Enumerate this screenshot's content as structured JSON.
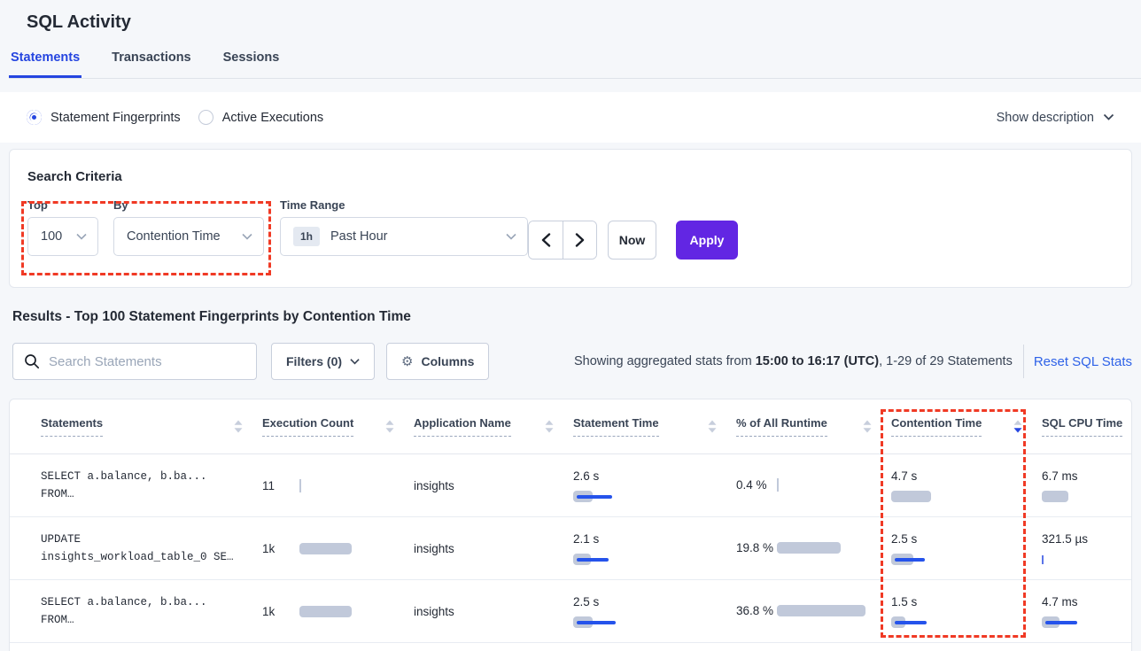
{
  "page": {
    "title": "SQL Activity"
  },
  "tabs": [
    {
      "label": "Statements",
      "active": true
    },
    {
      "label": "Transactions",
      "active": false
    },
    {
      "label": "Sessions",
      "active": false
    }
  ],
  "view_toggle": {
    "options": [
      {
        "label": "Statement Fingerprints",
        "selected": true
      },
      {
        "label": "Active Executions",
        "selected": false
      }
    ],
    "show_description": "Show description"
  },
  "search_criteria": {
    "title": "Search Criteria",
    "top": {
      "label": "Top",
      "value": "100"
    },
    "by": {
      "label": "By",
      "value": "Contention Time"
    },
    "time_range": {
      "label": "Time Range",
      "badge": "1h",
      "value": "Past Hour"
    },
    "now_label": "Now",
    "apply_label": "Apply"
  },
  "results": {
    "heading": "Results - Top 100 Statement Fingerprints by Contention Time",
    "search_placeholder": "Search Statements",
    "filters_label": "Filters (0)",
    "columns_label": "Columns",
    "stats_prefix": "Showing aggregated stats from ",
    "stats_range": "15:00 to 16:17 (UTC)",
    "stats_suffix": ", 1-29 of 29 Statements",
    "reset_label": "Reset SQL Stats"
  },
  "table": {
    "headers": [
      {
        "key": "statements",
        "label": "Statements",
        "sort": null
      },
      {
        "key": "execution-count",
        "label": "Execution Count",
        "sort": null
      },
      {
        "key": "application-name",
        "label": "Application Name",
        "sort": null
      },
      {
        "key": "statement-time",
        "label": "Statement Time",
        "sort": null
      },
      {
        "key": "runtime-pct",
        "label": "% of All Runtime",
        "sort": null
      },
      {
        "key": "contention-time",
        "label": "Contention Time",
        "sort": "desc"
      },
      {
        "key": "sql-cpu-time",
        "label": "SQL CPU Time",
        "sort": null
      }
    ],
    "rows": [
      {
        "statement": [
          "SELECT a.balance, b.ba...",
          "FROM…"
        ],
        "execution_count": "11",
        "execution_bar": {
          "tick": true
        },
        "application": "insights",
        "statement_time": "2.6 s",
        "statement_time_bar": {
          "gray": 22,
          "blue": 40
        },
        "runtime_pct": "0.4 %",
        "runtime_bar": {
          "tick": true
        },
        "contention_time": "4.7 s",
        "contention_bar": {
          "gray": 45,
          "blue": 0
        },
        "sql_cpu_time": "6.7 ms",
        "sql_cpu_bar": {
          "gray": 30,
          "blue": 0
        }
      },
      {
        "statement": [
          "UPDATE",
          "insights_workload_table_0 SE…"
        ],
        "execution_count": "1k",
        "execution_bar": {
          "gray": 59
        },
        "application": "insights",
        "statement_time": "2.1 s",
        "statement_time_bar": {
          "gray": 20,
          "blue": 36
        },
        "runtime_pct": "19.8 %",
        "runtime_bar": {
          "gray": 72
        },
        "contention_time": "2.5 s",
        "contention_bar": {
          "gray": 25,
          "blue": 34
        },
        "sql_cpu_time": "321.5 µs",
        "sql_cpu_bar": {
          "tick": true,
          "blue_tick": true
        }
      },
      {
        "statement": [
          "SELECT a.balance, b.ba...",
          "FROM…"
        ],
        "execution_count": "1k",
        "execution_bar": {
          "gray": 59
        },
        "application": "insights",
        "statement_time": "2.5 s",
        "statement_time_bar": {
          "gray": 22,
          "blue": 44
        },
        "runtime_pct": "36.8 %",
        "runtime_bar": {
          "gray": 100
        },
        "contention_time": "1.5 s",
        "contention_bar": {
          "gray": 16,
          "blue": 36
        },
        "sql_cpu_time": "4.7 ms",
        "sql_cpu_bar": {
          "gray": 20,
          "blue": 36
        }
      }
    ]
  },
  "colors": {
    "accent_blue": "#2545E0",
    "link_blue": "#2E62E8",
    "apply_purple": "#6226E3",
    "highlight_red": "#F03A25",
    "bar_gray": "#C1C9DA",
    "bar_blue": "#2553EB"
  }
}
